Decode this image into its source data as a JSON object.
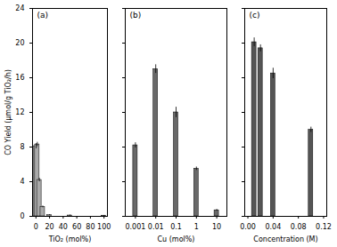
{
  "chart_data": [
    {
      "type": "bar",
      "title": "(a)",
      "x": [
        0.5,
        2,
        5,
        10,
        20,
        50,
        100
      ],
      "values": [
        8.1,
        8.3,
        4.2,
        1.1,
        0.15,
        0.1,
        0.08
      ],
      "errors": [
        0.3,
        0.25,
        0.2,
        0.1,
        0.05,
        0.05,
        0.03
      ],
      "xlabel": "TiO₂ (mol%)",
      "ylabel": "CO Yield (μmol/g TiO₂/h)",
      "xlim": [
        -5,
        105
      ],
      "xticks": [
        0,
        20,
        40,
        60,
        80,
        100
      ],
      "ylim": [
        0,
        24
      ],
      "yticks": [
        0,
        4,
        8,
        12,
        16,
        20,
        24
      ],
      "color": "#aaaaaa"
    },
    {
      "type": "bar",
      "title": "(b)",
      "x": [
        0.001,
        0.01,
        0.1,
        1,
        10
      ],
      "values": [
        8.2,
        17.0,
        12.0,
        5.5,
        0.7
      ],
      "errors": [
        0.3,
        0.5,
        0.6,
        0.2,
        0.1
      ],
      "xlabel": "Cu (mol%)",
      "log": "x",
      "xlim": [
        0.00031622776601683794,
        31.622776601683793
      ],
      "xticks": [
        0.001,
        0.01,
        0.1,
        1,
        10
      ],
      "ylim": [
        0,
        24
      ],
      "yticks": [
        0,
        4,
        8,
        12,
        16,
        20,
        24
      ],
      "tick_labels": "x",
      "color": "#696969"
    },
    {
      "type": "bar",
      "title": "(c)",
      "x": [
        0.01,
        0.02,
        0.04,
        0.1
      ],
      "values": [
        20.1,
        19.4,
        16.5,
        10.0
      ],
      "errors": [
        0.5,
        0.4,
        0.6,
        0.3
      ],
      "xlabel": "Concentration (M)",
      "xlim": [
        -0.005,
        0.125
      ],
      "xticks": [
        {
          "value": 0.0,
          "label": "0.00"
        },
        0.04,
        0.08,
        0.12
      ],
      "ylim": [
        0,
        24
      ],
      "yticks": [
        0,
        4,
        8,
        12,
        16,
        20,
        24
      ],
      "tick_labels": "x",
      "color": "#555555"
    }
  ]
}
